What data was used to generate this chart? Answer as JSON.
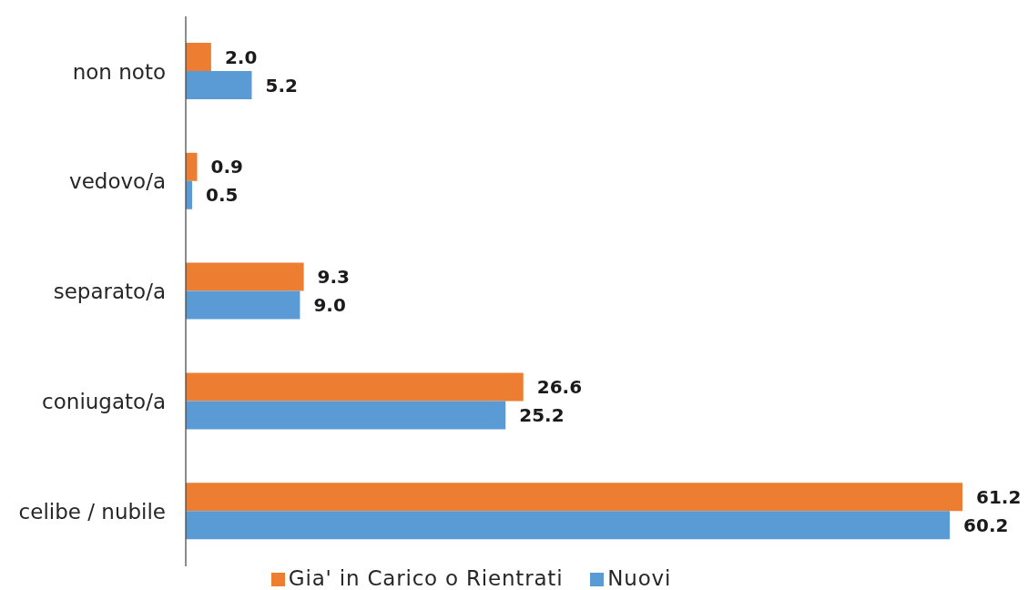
{
  "chart_data": {
    "type": "bar",
    "orientation": "horizontal",
    "categories": [
      "non noto",
      "vedovo/a",
      "separato/a",
      "coniugato/a",
      "celibe / nubile"
    ],
    "series": [
      {
        "name": "Gia' in Carico o Rientrati",
        "color": "#ed7d31",
        "values": [
          2.0,
          0.9,
          9.3,
          26.6,
          61.2
        ],
        "value_labels": [
          "2.0",
          "0.9",
          "9.3",
          "26.6",
          "61.2"
        ]
      },
      {
        "name": "Nuovi",
        "color": "#5b9bd5",
        "values": [
          5.2,
          0.5,
          9.0,
          25.2,
          60.2
        ],
        "value_labels": [
          "5.2",
          "0.5",
          "9.0",
          "25.2",
          "60.2"
        ]
      }
    ],
    "legend": "bottom",
    "tick_labels": "y"
  }
}
